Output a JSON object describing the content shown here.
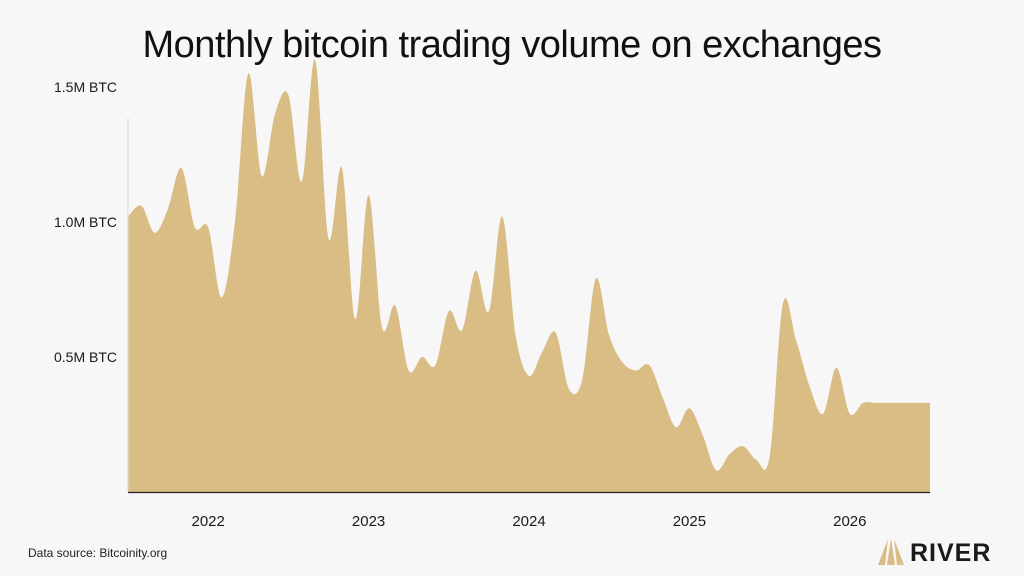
{
  "title": "Monthly bitcoin trading volume on exchanges",
  "source": "Data source: Bitcoinity.org",
  "brand": {
    "name": "RIVER",
    "logo_icon": "river-logo-icon"
  },
  "colors": {
    "fill": "#d9bd84",
    "axis": "#222222",
    "background": "#f7f7f7"
  },
  "chart_data": {
    "type": "area",
    "title": "Monthly bitcoin trading volume on exchanges",
    "xlabel": "",
    "ylabel": "",
    "y_unit": "BTC",
    "ylim": [
      0,
      1.6
    ],
    "xlim": [
      "2021-08",
      "2026-08"
    ],
    "yticks": [
      {
        "value": 0.5,
        "label": "0.5M BTC"
      },
      {
        "value": 1.0,
        "label": "1.0M BTC"
      },
      {
        "value": 1.5,
        "label": "1.5M BTC"
      }
    ],
    "xticks": [
      {
        "value": "2022-02",
        "label": "2022"
      },
      {
        "value": "2023-02",
        "label": "2023"
      },
      {
        "value": "2024-02",
        "label": "2024"
      },
      {
        "value": "2025-02",
        "label": "2025"
      },
      {
        "value": "2026-02",
        "label": "2026"
      }
    ],
    "grid": false,
    "series": [
      {
        "x": [
          "2021-08",
          "2021-09",
          "2021-10",
          "2021-11",
          "2021-12",
          "2022-01",
          "2022-02",
          "2022-03",
          "2022-04",
          "2022-05",
          "2022-06",
          "2022-07",
          "2022-08",
          "2022-09",
          "2022-10",
          "2022-11",
          "2022-12",
          "2023-01",
          "2023-02",
          "2023-03",
          "2023-04",
          "2023-05",
          "2023-06",
          "2023-07",
          "2023-08",
          "2023-09",
          "2023-10",
          "2023-11",
          "2023-12",
          "2024-01",
          "2024-02",
          "2024-03",
          "2024-04",
          "2024-05",
          "2024-06",
          "2024-07",
          "2024-08",
          "2024-09",
          "2024-10",
          "2024-11",
          "2024-12",
          "2025-01",
          "2025-02",
          "2025-03",
          "2025-04",
          "2025-05",
          "2025-06",
          "2025-07",
          "2025-08",
          "2025-09",
          "2025-10",
          "2025-11",
          "2025-12",
          "2026-01",
          "2026-02",
          "2026-03",
          "2026-04",
          "2026-05",
          "2026-06",
          "2026-07",
          "2026-08"
        ],
        "values": [
          1.02,
          1.06,
          0.96,
          1.05,
          1.2,
          0.98,
          0.98,
          0.72,
          1.0,
          1.55,
          1.17,
          1.4,
          1.47,
          1.15,
          1.6,
          0.94,
          1.2,
          0.64,
          1.1,
          0.61,
          0.69,
          0.45,
          0.5,
          0.47,
          0.67,
          0.6,
          0.82,
          0.67,
          1.02,
          0.58,
          0.43,
          0.52,
          0.59,
          0.38,
          0.42,
          0.79,
          0.58,
          0.48,
          0.45,
          0.47,
          0.35,
          0.24,
          0.31,
          0.21,
          0.08,
          0.14,
          0.17,
          0.12,
          0.13,
          0.7,
          0.56,
          0.39,
          0.29,
          0.46,
          0.29,
          0.33,
          0.33,
          0.33,
          0.33,
          0.33,
          0.33
        ]
      }
    ]
  }
}
